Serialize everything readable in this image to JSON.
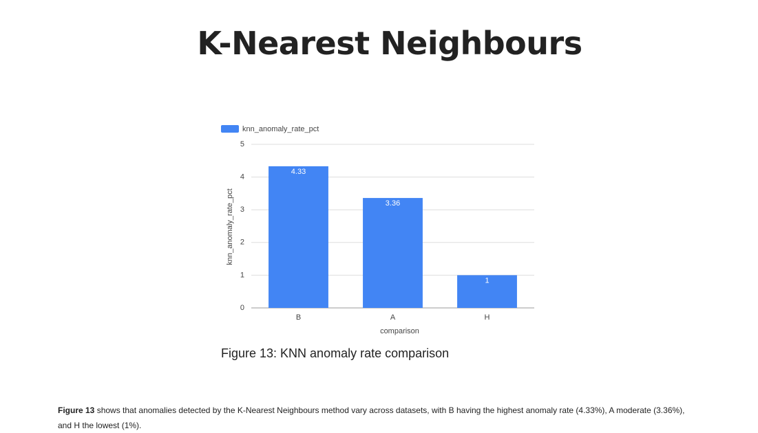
{
  "header": {
    "title": "K-Nearest Neighbours"
  },
  "chart_data": {
    "type": "bar",
    "categories": [
      "B",
      "A",
      "H"
    ],
    "series": [
      {
        "name": "knn_anomaly_rate_pct",
        "color": "#4285f4",
        "values": [
          4.33,
          3.36,
          1
        ]
      }
    ],
    "x_label": "comparison",
    "y_label": "knn_anomaly_rate_pct",
    "ylim": [
      0,
      5
    ],
    "yticks": [
      0,
      1,
      2,
      3,
      4,
      5
    ],
    "grid": true,
    "legend": "top-left"
  },
  "caption": "Figure 13: KNN anomaly rate comparison",
  "paragraph": {
    "bold": "Figure 13",
    "text": "shows that anomalies detected by the K-Nearest Neighbours method vary across datasets, with B having the highest anomaly rate (4.33%), A moderate (3.36%), and H the lowest (1%)."
  }
}
